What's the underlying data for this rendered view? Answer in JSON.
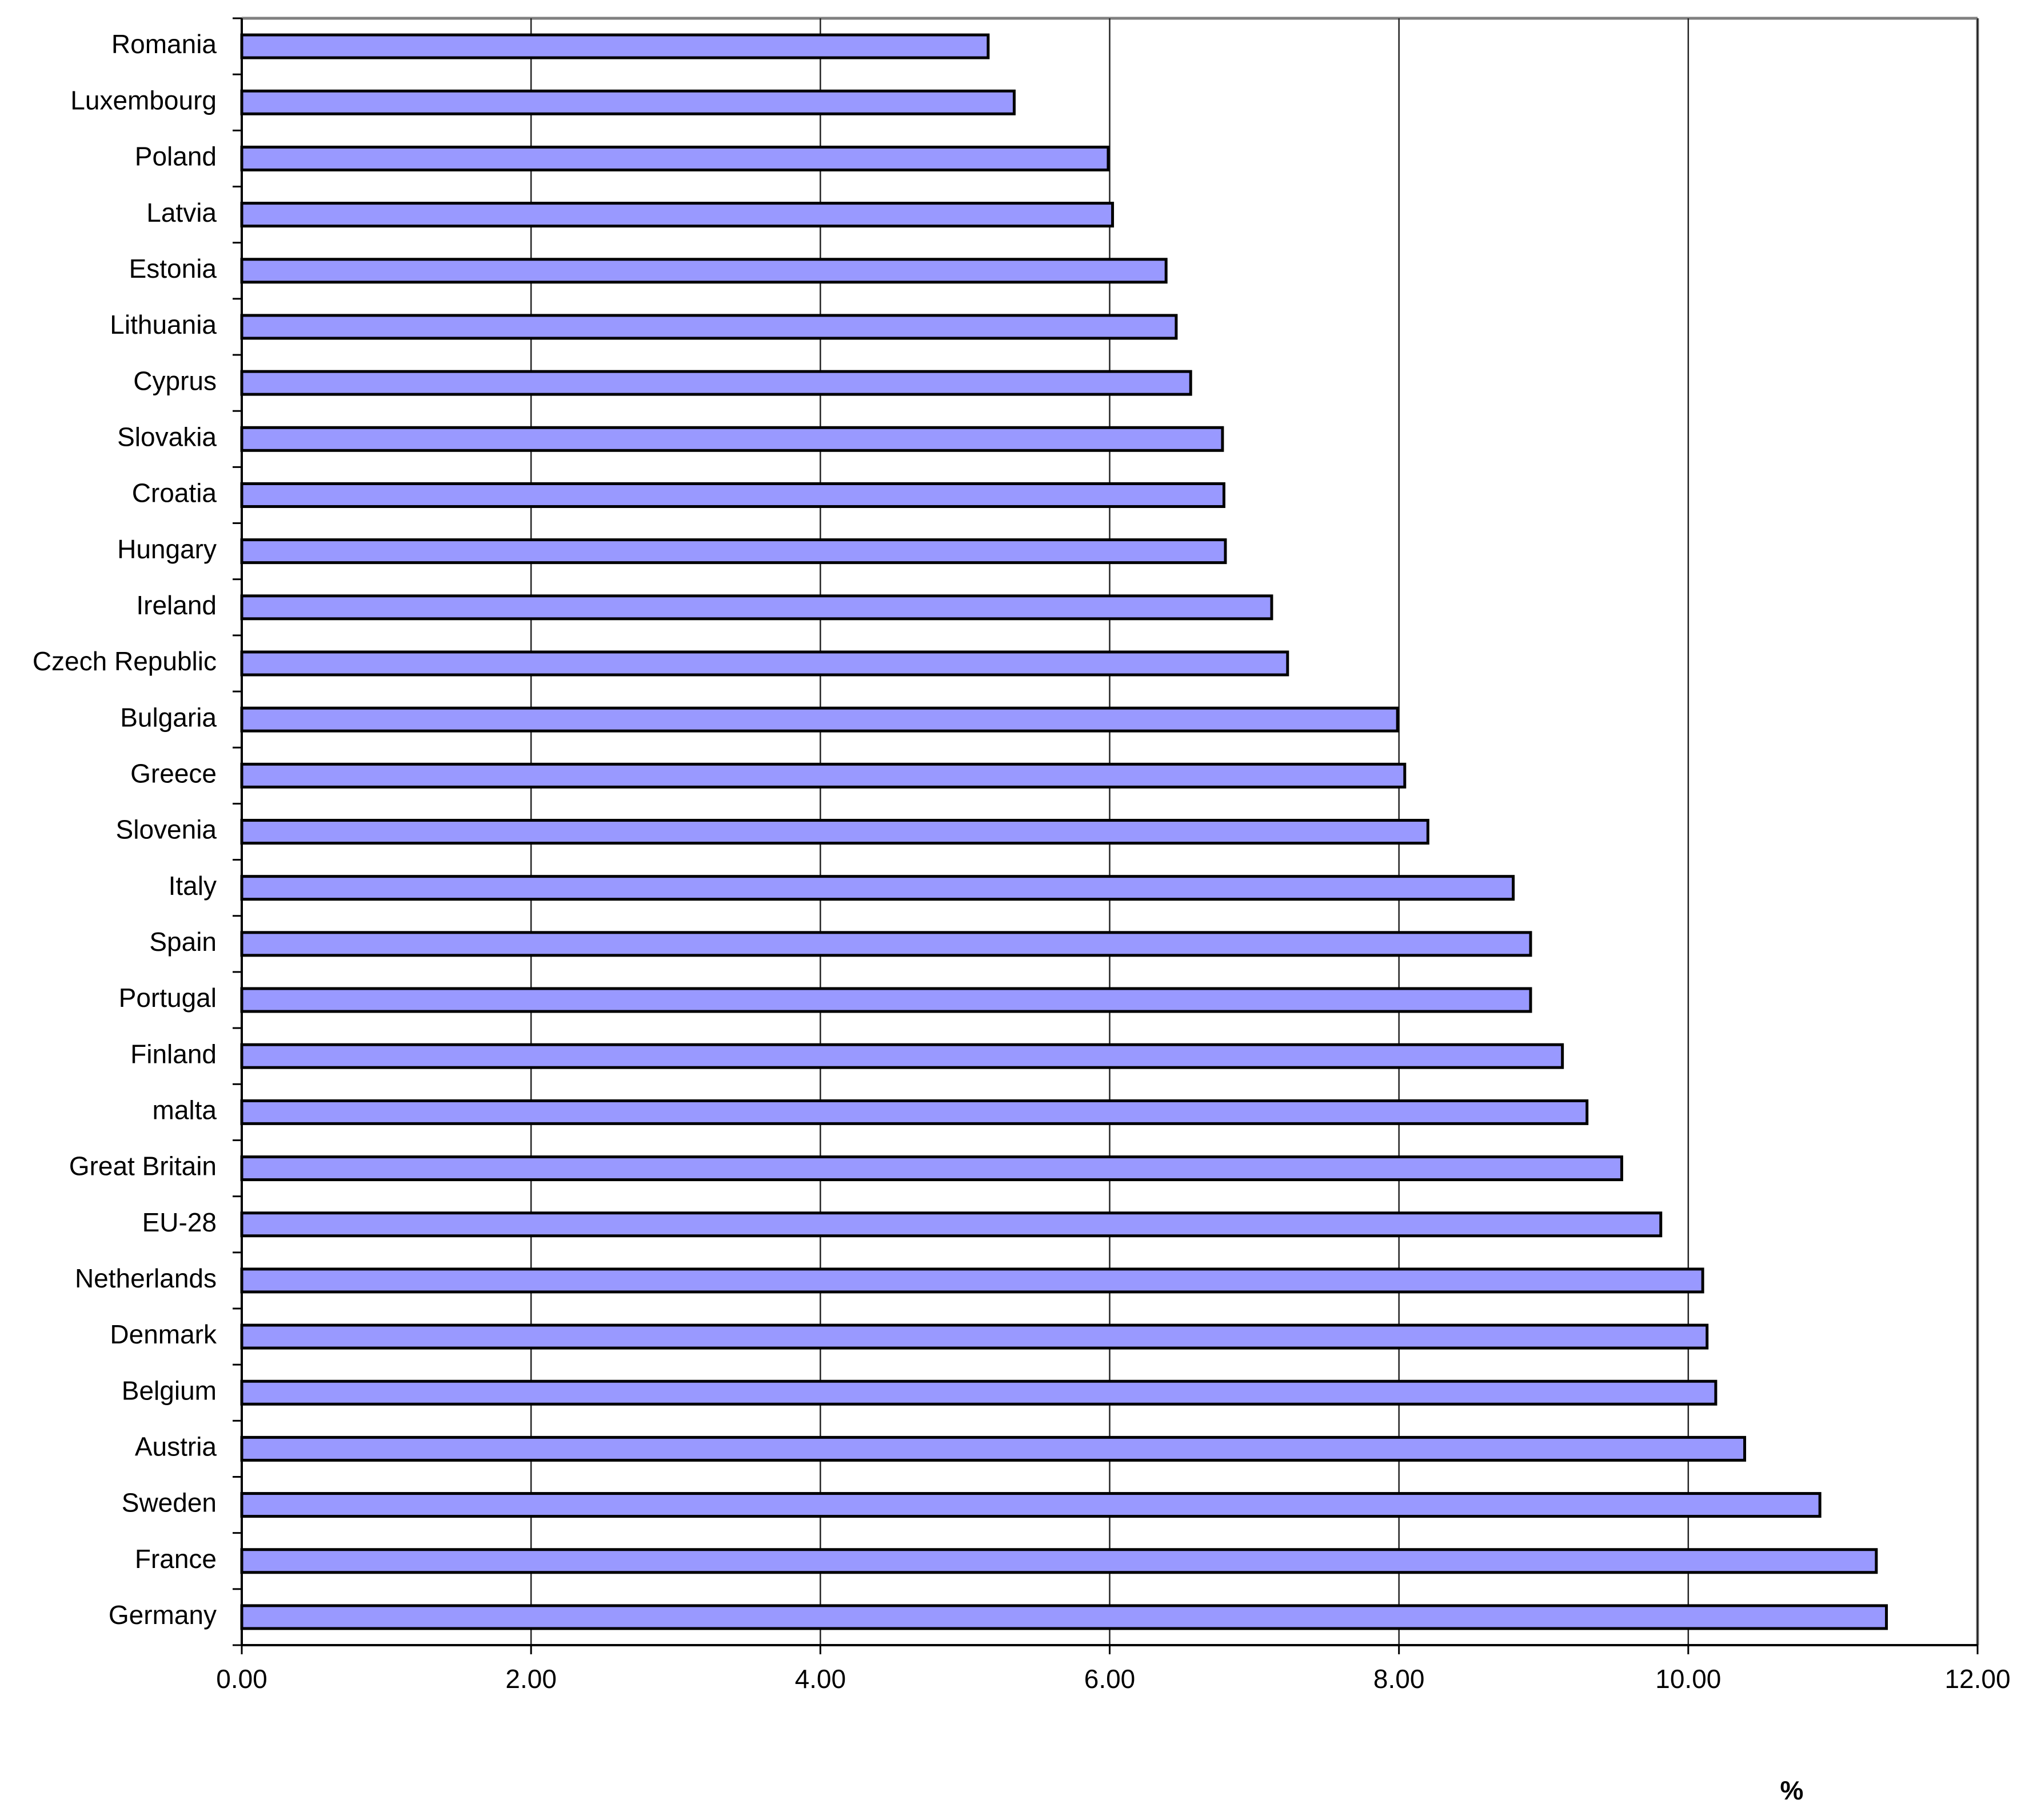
{
  "chart_data": {
    "type": "barh",
    "categories": [
      "Romania",
      "Luxembourg",
      "Poland",
      "Latvia",
      "Estonia",
      "Lithuania",
      "Cyprus",
      "Slovakia",
      "Croatia",
      "Hungary",
      "Ireland",
      "Czech Republic",
      "Bulgaria",
      "Greece",
      "Slovenia",
      "Italy",
      "Spain",
      "Portugal",
      "Finland",
      "malta",
      "Great Britain",
      "EU-28",
      "Netherlands",
      "Denmark",
      "Belgium",
      "Austria",
      "Sweden",
      "France",
      "Germany"
    ],
    "values": [
      5.16,
      5.34,
      5.99,
      6.02,
      6.39,
      6.46,
      6.56,
      6.78,
      6.79,
      6.8,
      7.12,
      7.23,
      7.99,
      8.04,
      8.2,
      8.79,
      8.91,
      8.91,
      9.13,
      9.3,
      9.54,
      9.81,
      10.1,
      10.13,
      10.19,
      10.39,
      10.91,
      11.3,
      11.37
    ],
    "color": "#9999ff",
    "x_label": "%",
    "xlim": [
      0,
      12
    ],
    "xticks": [
      {
        "value": 0,
        "label": "0.00"
      },
      {
        "value": 2,
        "label": "2.00"
      },
      {
        "value": 4,
        "label": "4.00"
      },
      {
        "value": 6,
        "label": "6.00"
      },
      {
        "value": 8,
        "label": "8.00"
      },
      {
        "value": 10,
        "label": "10.00"
      },
      {
        "value": 12,
        "label": "12.00"
      }
    ],
    "grid": true
  }
}
